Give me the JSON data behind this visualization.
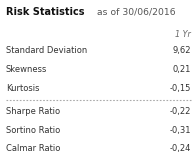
{
  "title_bold": "Risk Statistics",
  "title_normal": " as of 30/06/2016",
  "col_header": "1 Yr",
  "rows_top": [
    [
      "Standard Deviation",
      "9,62"
    ],
    [
      "Skewness",
      "0,21"
    ],
    [
      "Kurtosis",
      "-0,15"
    ]
  ],
  "rows_bottom": [
    [
      "Sharpe Ratio",
      "-0,22"
    ],
    [
      "Sortino Ratio",
      "-0,31"
    ],
    [
      "Calmar Ratio",
      "-0,24"
    ]
  ],
  "bg_color": "#ffffff",
  "text_color": "#333333",
  "col_header_color": "#666666",
  "dotted_line_color": "#aaaaaa",
  "title_bold_color": "#111111",
  "title_normal_color": "#555555",
  "title_fontsize": 7.0,
  "body_fontsize": 6.0,
  "col_header_fontsize": 5.8
}
